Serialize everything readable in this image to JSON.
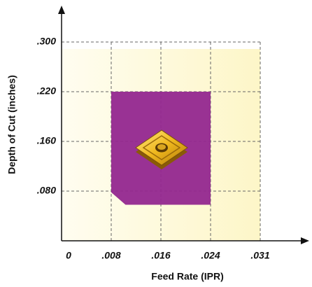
{
  "chart_data": {
    "type": "region",
    "x_label": "Feed Rate (IPR)",
    "y_label": "Depth of Cut (inches)",
    "xlim": [
      0,
      0.038
    ],
    "ylim": [
      0,
      0.36
    ],
    "xticks": [
      0,
      {
        "value": 0.008,
        "label": ".008"
      },
      {
        "value": 0.016,
        "label": ".016"
      },
      {
        "value": 0.024,
        "label": ".024"
      },
      {
        "value": 0.031,
        "label": ".031"
      }
    ],
    "yticks": [
      {
        "value": 0.08,
        "label": ".080"
      },
      {
        "value": 0.16,
        "label": ".160"
      },
      {
        "value": 0.22,
        "label": ".220"
      },
      {
        "value": 0.3,
        "label": ".300"
      }
    ],
    "grid": true,
    "color": "#93278f",
    "region": {
      "x": [
        0.008,
        0.024,
        0.024,
        0.0103,
        0.008
      ],
      "y": [
        0.22,
        0.22,
        0.058,
        0.058,
        0.078
      ]
    }
  }
}
